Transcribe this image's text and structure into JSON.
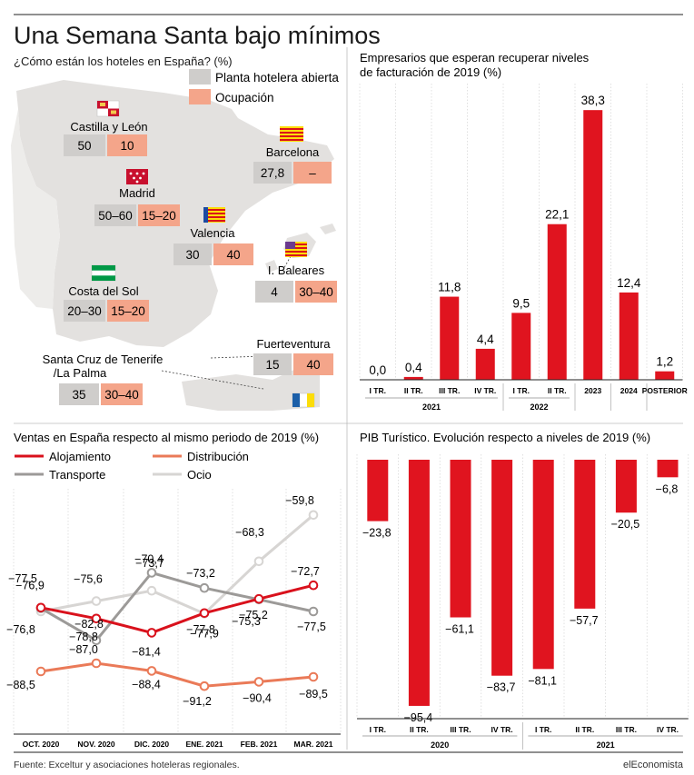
{
  "title": "Una Semana Santa bajo mínimos",
  "source": "Fuente: Exceltur y asociaciones hoteleras regionales.",
  "brand": "elEconomista",
  "colors": {
    "red": "#d9111c",
    "salmon": "#f4a58a",
    "gray_box": "#cfcdcb",
    "map": "#e3e1df",
    "distribucion": "#ea7a58",
    "transporte": "#9c9a98",
    "ocio": "#d7d5d3",
    "bar_red": "#e0141f"
  },
  "map": {
    "subtitle": "¿Cómo están los hoteles en España? (%)",
    "legend": [
      "Planta hotelera abierta",
      "Ocupación"
    ],
    "regions": [
      {
        "name": "Castilla y León",
        "open": "50",
        "occ": "10",
        "flag": "castilla-leon-flag-icon"
      },
      {
        "name": "Barcelona",
        "open": "27,8",
        "occ": "–",
        "flag": "catalonia-flag-icon"
      },
      {
        "name": "Madrid",
        "open": "50–60",
        "occ": "15–20",
        "flag": "madrid-flag-icon"
      },
      {
        "name": "Valencia",
        "open": "30",
        "occ": "40",
        "flag": "valencia-flag-icon"
      },
      {
        "name": "I. Baleares",
        "open": "4",
        "occ": "30–40",
        "flag": "baleares-flag-icon"
      },
      {
        "name": "Costa del Sol",
        "open": "20–30",
        "occ": "15–20",
        "flag": "andalucia-flag-icon"
      },
      {
        "name": "Fuerteventura",
        "open": "15",
        "occ": "40",
        "flag": "canarias-flag-icon"
      },
      {
        "name_lines": [
          "Santa Cruz de Tenerife",
          "/La Palma"
        ],
        "open": "35",
        "occ": "30–40"
      }
    ]
  },
  "chart_data": [
    {
      "type": "bar",
      "title": "Empresarios que esperan recuperar niveles de facturación de 2019 (%)",
      "categories": [
        "I TR.",
        "II TR.",
        "III TR.",
        "IV TR.",
        "I TR.",
        "II TR.",
        "2023",
        "2024",
        "POSTERIOR"
      ],
      "groups": [
        {
          "label": "2021",
          "span": [
            0,
            3
          ]
        },
        {
          "label": "2022",
          "span": [
            4,
            5
          ]
        }
      ],
      "values": [
        0.0,
        0.4,
        11.8,
        4.4,
        9.5,
        22.1,
        38.3,
        12.4,
        1.2
      ],
      "value_labels": [
        "0,0",
        "0,4",
        "11,8",
        "4,4",
        "9,5",
        "22,1",
        "38,3",
        "12,4",
        "1,2"
      ],
      "ylim": [
        0,
        40
      ]
    },
    {
      "type": "line",
      "title": "Ventas en España respecto al mismo periodo de 2019 (%)",
      "categories": [
        "OCT. 2020",
        "NOV. 2020",
        "DIC. 2020",
        "ENE. 2021",
        "FEB. 2021",
        "MAR. 2021"
      ],
      "ylim": [
        -100,
        -55
      ],
      "series": [
        {
          "name": "Alojamiento",
          "values": [
            -76.8,
            -78.8,
            -81.4,
            -77.8,
            -75.2,
            -72.7
          ],
          "labels": [
            "−76,8",
            "−78,8",
            "−81,4",
            "−77,8",
            "−75,2",
            "−72,7"
          ]
        },
        {
          "name": "Distribución",
          "values": [
            -88.5,
            -87.0,
            -88.4,
            -91.2,
            -90.4,
            -89.5
          ],
          "labels": [
            "−88,5",
            "−87,0",
            "−88,4",
            "−91,2",
            "−90,4",
            "−89,5"
          ]
        },
        {
          "name": "Transporte",
          "values": [
            -76.9,
            -82.8,
            -70.4,
            -73.2,
            -75.3,
            -77.5
          ],
          "labels": [
            "−76,9",
            "−82,8",
            "−70,4",
            "−73,2",
            "−75,3",
            "−77,5"
          ]
        },
        {
          "name": "Ocio",
          "values": [
            -77.5,
            -75.6,
            -73.7,
            -77.9,
            -68.3,
            -59.8
          ],
          "labels": [
            "−77,5",
            "−75,6",
            "−73,7",
            "−77,9",
            "−68,3",
            "−59,8"
          ]
        }
      ]
    },
    {
      "type": "bar",
      "title": "PIB Turístico. Evolución respecto a niveles de 2019 (%)",
      "categories": [
        "I TR.",
        "II TR.",
        "III TR.",
        "IV TR.",
        "I TR.",
        "II TR.",
        "III TR.",
        "IV TR."
      ],
      "groups": [
        {
          "label": "2020",
          "span": [
            0,
            3
          ]
        },
        {
          "label": "2021",
          "span": [
            4,
            7
          ]
        }
      ],
      "values": [
        -23.8,
        -95.4,
        -61.1,
        -83.7,
        -81.1,
        -57.7,
        -20.5,
        -6.8
      ],
      "value_labels": [
        "−23,8",
        "−95,4",
        "−61,1",
        "−83,7",
        "−81,1",
        "−57,7",
        "−20,5",
        "−6,8"
      ],
      "ylim": [
        -100,
        0
      ]
    }
  ]
}
